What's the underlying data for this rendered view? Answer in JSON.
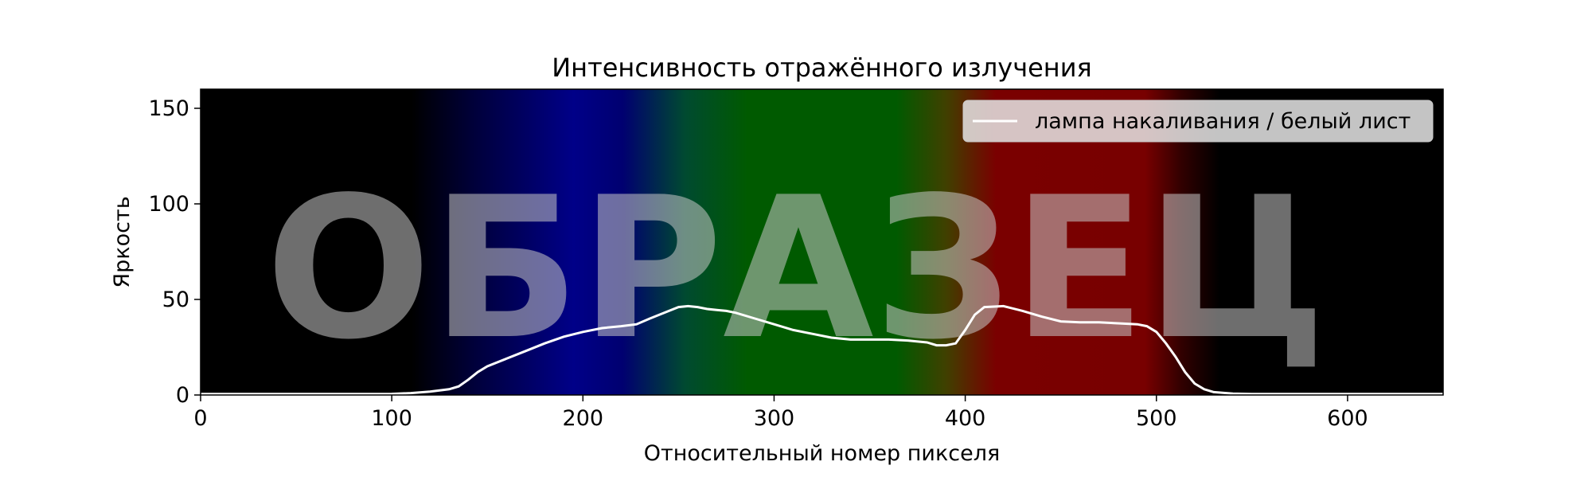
{
  "chart_data": {
    "type": "line",
    "title": "Интенсивность отражённого излучения",
    "xlabel": "Относительный номер пикселя",
    "ylabel": "Яркость",
    "xlim": [
      0,
      650
    ],
    "ylim": [
      0,
      160
    ],
    "xticks": [
      0,
      100,
      200,
      300,
      400,
      500,
      600
    ],
    "xtick_labels": [
      "0",
      "100",
      "200",
      "300",
      "400",
      "500",
      "600"
    ],
    "yticks": [
      0,
      50,
      100,
      150
    ],
    "ytick_labels": [
      "0",
      "50",
      "100",
      "150"
    ],
    "grid": false,
    "legend_position": "top-right",
    "background": "visible-spectrum image (black → blue → green → red → black)",
    "watermark": "ОБРАЗЕЦ",
    "series": [
      {
        "name": "лампа накаливания / белый лист",
        "color": "#ffffff",
        "x": [
          0,
          60,
          100,
          110,
          120,
          130,
          135,
          140,
          145,
          150,
          160,
          170,
          180,
          190,
          200,
          210,
          220,
          228,
          235,
          245,
          250,
          255,
          260,
          265,
          270,
          275,
          280,
          290,
          300,
          310,
          320,
          330,
          340,
          350,
          360,
          370,
          380,
          385,
          390,
          395,
          400,
          405,
          410,
          420,
          430,
          440,
          450,
          460,
          470,
          480,
          490,
          495,
          500,
          505,
          510,
          515,
          520,
          525,
          530,
          540,
          550,
          600,
          650
        ],
        "y": [
          0.5,
          0.5,
          0.6,
          1.0,
          1.8,
          3.0,
          4.5,
          8.0,
          12.0,
          15.0,
          19.0,
          23.0,
          27.0,
          30.5,
          33.0,
          35.0,
          36.0,
          37.0,
          40.0,
          44.0,
          46.0,
          46.5,
          46.0,
          45.0,
          44.5,
          44.0,
          43.0,
          40.0,
          37.0,
          34.0,
          32.0,
          30.0,
          29.0,
          29.0,
          29.0,
          28.5,
          27.5,
          26.0,
          26.0,
          27.0,
          34.0,
          42.0,
          46.0,
          46.5,
          44.0,
          41.0,
          38.5,
          38.0,
          38.0,
          37.5,
          37.0,
          36.0,
          33.0,
          27.0,
          20.0,
          12.0,
          6.0,
          3.0,
          1.5,
          0.7,
          0.5,
          0.5,
          0.5
        ]
      }
    ]
  }
}
